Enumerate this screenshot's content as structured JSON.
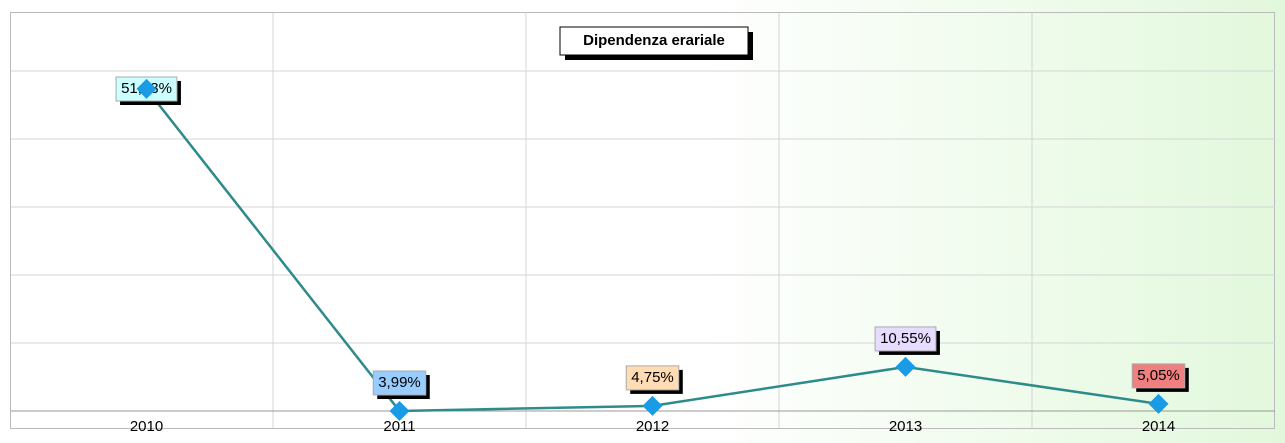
{
  "chart_data": {
    "type": "line",
    "title": "Dipendenza erariale",
    "categories": [
      "2010",
      "2011",
      "2012",
      "2013",
      "2014"
    ],
    "series": [
      {
        "color": "#2e8b8b",
        "marker_color": "#1a9be6",
        "values": [
          51.93,
          3.99,
          4.75,
          10.55,
          5.05
        ],
        "value_labels": [
          "51,93%",
          "3,99%",
          "4,75%",
          "10,55%",
          "5,05%"
        ],
        "label_colors": [
          "#ccffff",
          "#99ccff",
          "#ffdcb4",
          "#e6dcff",
          "#f08080"
        ]
      }
    ],
    "ylim": [
      3.99,
      54.6
    ],
    "grid": true
  }
}
